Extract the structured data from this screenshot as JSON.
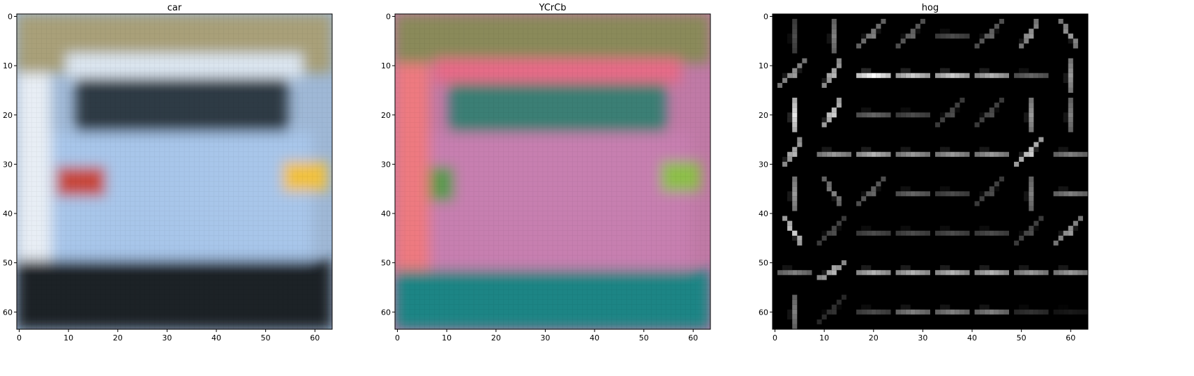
{
  "chart_data": [
    {
      "type": "heatmap",
      "title": "car",
      "xlabel": "",
      "ylabel": "",
      "xlim": [
        -0.5,
        63.5
      ],
      "ylim": [
        63.5,
        -0.5
      ],
      "xticks": [
        0,
        10,
        20,
        30,
        40,
        50,
        60
      ],
      "yticks": [
        0,
        10,
        20,
        30,
        40,
        50,
        60
      ],
      "grid": false,
      "image": {
        "size": [
          64,
          64
        ],
        "palette": "rgb",
        "background": "#9fb8d6",
        "regions": [
          {
            "name": "upper background",
            "x": [
              0,
              64
            ],
            "y": [
              0,
              12
            ],
            "color": "#a9a079"
          },
          {
            "name": "roof",
            "x": [
              10,
              58
            ],
            "y": [
              8,
              13
            ],
            "color": "#dde7f2"
          },
          {
            "name": "rear window",
            "x": [
              12,
              55
            ],
            "y": [
              13,
              24
            ],
            "color": "#2f3b44"
          },
          {
            "name": "body",
            "x": [
              6,
              60
            ],
            "y": [
              24,
              50
            ],
            "color": "#a8c6ea"
          },
          {
            "name": "left tail light",
            "x": [
              8,
              18
            ],
            "y": [
              31,
              37
            ],
            "color": "#c84a3c"
          },
          {
            "name": "right tail light",
            "x": [
              54,
              63
            ],
            "y": [
              30,
              36
            ],
            "color": "#f2c240"
          },
          {
            "name": "bumper shadow",
            "x": [
              0,
              64
            ],
            "y": [
              50,
              64
            ],
            "color": "#1e2228"
          },
          {
            "name": "left edge",
            "x": [
              0,
              7
            ],
            "y": [
              12,
              50
            ],
            "color": "#e8eef5"
          }
        ]
      }
    },
    {
      "type": "heatmap",
      "title": "YCrCb",
      "xlabel": "",
      "ylabel": "",
      "xlim": [
        -0.5,
        63.5
      ],
      "ylim": [
        63.5,
        -0.5
      ],
      "xticks": [
        0,
        10,
        20,
        30,
        40,
        50,
        60
      ],
      "yticks": [
        0,
        10,
        20,
        30,
        40,
        50,
        60
      ],
      "grid": false,
      "image": {
        "size": [
          64,
          64
        ],
        "palette": "rgb",
        "background": "#c07aa6",
        "regions": [
          {
            "name": "upper background",
            "x": [
              0,
              64
            ],
            "y": [
              0,
              10
            ],
            "color": "#8a8a5a"
          },
          {
            "name": "roof",
            "x": [
              8,
              58
            ],
            "y": [
              9,
              14
            ],
            "color": "#e86a88"
          },
          {
            "name": "rear window",
            "x": [
              11,
              55
            ],
            "y": [
              14,
              24
            ],
            "color": "#3a7f75"
          },
          {
            "name": "body",
            "x": [
              6,
              60
            ],
            "y": [
              24,
              52
            ],
            "color": "#c77fb0"
          },
          {
            "name": "left tail light",
            "x": [
              7,
              12
            ],
            "y": [
              31,
              38
            ],
            "color": "#5a9a50"
          },
          {
            "name": "right tail light",
            "x": [
              54,
              62
            ],
            "y": [
              30,
              36
            ],
            "color": "#8ec048"
          },
          {
            "name": "lower area",
            "x": [
              0,
              64
            ],
            "y": [
              52,
              64
            ],
            "color": "#1f8585"
          },
          {
            "name": "left edge",
            "x": [
              0,
              7
            ],
            "y": [
              10,
              52
            ],
            "color": "#ee7a80"
          }
        ]
      }
    },
    {
      "type": "heatmap",
      "title": "hog",
      "xlabel": "",
      "ylabel": "",
      "xlim": [
        -0.5,
        63.5
      ],
      "ylim": [
        63.5,
        -0.5
      ],
      "xticks": [
        0,
        10,
        20,
        30,
        40,
        50,
        60
      ],
      "yticks": [
        0,
        10,
        20,
        30,
        40,
        50,
        60
      ],
      "grid": false,
      "image": {
        "size": [
          64,
          64
        ],
        "palette": "gray",
        "background": "#000000",
        "cells": [
          8,
          8
        ],
        "angle_units": "degrees",
        "dominant_angle": [
          [
            90,
            90,
            45,
            45,
            0,
            45,
            60,
            120
          ],
          [
            45,
            60,
            0,
            0,
            0,
            0,
            0,
            90
          ],
          [
            90,
            60,
            0,
            0,
            45,
            45,
            90,
            90
          ],
          [
            60,
            0,
            0,
            0,
            0,
            0,
            45,
            0
          ],
          [
            90,
            120,
            45,
            0,
            0,
            45,
            90,
            0
          ],
          [
            120,
            45,
            0,
            0,
            0,
            0,
            45,
            45
          ],
          [
            0,
            30,
            0,
            0,
            0,
            0,
            0,
            0
          ],
          [
            90,
            45,
            0,
            0,
            0,
            0,
            0,
            0
          ]
        ],
        "strength": [
          [
            0.3,
            0.5,
            0.5,
            0.4,
            0.3,
            0.4,
            0.6,
            0.6
          ],
          [
            0.6,
            0.7,
            1.0,
            0.8,
            0.8,
            0.7,
            0.4,
            0.6
          ],
          [
            0.9,
            0.8,
            0.4,
            0.3,
            0.3,
            0.3,
            0.6,
            0.5
          ],
          [
            0.7,
            0.6,
            0.7,
            0.6,
            0.6,
            0.6,
            0.8,
            0.5
          ],
          [
            0.6,
            0.5,
            0.4,
            0.4,
            0.3,
            0.3,
            0.5,
            0.5
          ],
          [
            0.8,
            0.3,
            0.3,
            0.3,
            0.3,
            0.3,
            0.3,
            0.6
          ],
          [
            0.5,
            0.7,
            0.7,
            0.7,
            0.7,
            0.7,
            0.6,
            0.6
          ],
          [
            0.5,
            0.2,
            0.3,
            0.5,
            0.5,
            0.5,
            0.2,
            0.1
          ]
        ]
      }
    }
  ]
}
